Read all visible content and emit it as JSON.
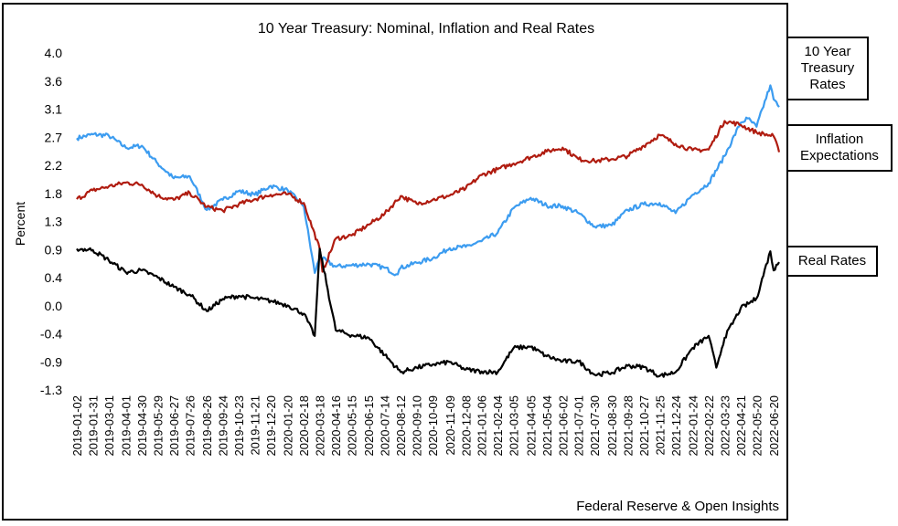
{
  "chart_data": {
    "type": "line",
    "title": "10 Year Treasury: Nominal, Inflation and Real Rates",
    "xlabel": "",
    "ylabel": "Percent",
    "ylim": [
      -1.3,
      4.0
    ],
    "yticks": [
      "4.0",
      "3.6",
      "3.1",
      "2.7",
      "2.2",
      "1.8",
      "1.3",
      "0.9",
      "0.4",
      "0.0",
      "-0.4",
      "-0.9",
      "-1.3"
    ],
    "x_tick_labels": [
      "2019-01-02",
      "2019-01-31",
      "2019-03-01",
      "2019-04-01",
      "2019-04-30",
      "2019-05-29",
      "2019-06-27",
      "2019-07-26",
      "2019-08-26",
      "2019-09-24",
      "2019-10-23",
      "2019-11-21",
      "2019-12-20",
      "2020-01-20",
      "2020-02-18",
      "2020-03-18",
      "2020-04-16",
      "2020-05-15",
      "2020-06-15",
      "2020-07-14",
      "2020-08-12",
      "2020-09-10",
      "2020-10-09",
      "2020-11-09",
      "2020-12-08",
      "2021-01-06",
      "2021-02-04",
      "2021-03-05",
      "2021-04-05",
      "2021-05-04",
      "2021-06-02",
      "2021-07-01",
      "2021-07-30",
      "2021-08-30",
      "2021-09-28",
      "2021-10-27",
      "2021-11-25",
      "2021-12-24",
      "2022-01-24",
      "2022-02-22",
      "2022-03-23",
      "2022-04-21",
      "2022-05-20",
      "2022-06-20"
    ],
    "grid": false,
    "legend_position": "right",
    "series": [
      {
        "name": "10 Year Treasury Rates",
        "color": "#3c9cf0",
        "x": [
          "2019-01-02",
          "2019-01-31",
          "2019-03-01",
          "2019-04-01",
          "2019-04-30",
          "2019-05-29",
          "2019-06-27",
          "2019-07-26",
          "2019-08-26",
          "2019-09-24",
          "2019-10-23",
          "2019-11-21",
          "2019-12-20",
          "2020-01-20",
          "2020-02-18",
          "2020-03-09",
          "2020-03-18",
          "2020-04-16",
          "2020-05-15",
          "2020-06-15",
          "2020-07-14",
          "2020-08-04",
          "2020-08-12",
          "2020-09-10",
          "2020-10-09",
          "2020-11-09",
          "2020-12-08",
          "2021-01-06",
          "2021-02-04",
          "2021-03-05",
          "2021-04-05",
          "2021-05-04",
          "2021-06-02",
          "2021-07-01",
          "2021-07-30",
          "2021-08-30",
          "2021-09-28",
          "2021-10-27",
          "2021-11-25",
          "2021-12-24",
          "2022-01-24",
          "2022-02-22",
          "2022-03-23",
          "2022-04-21",
          "2022-05-04",
          "2022-05-20",
          "2022-06-14",
          "2022-06-20",
          "2022-06-30"
        ],
        "values": [
          2.66,
          2.72,
          2.7,
          2.51,
          2.54,
          2.26,
          2.03,
          2.06,
          1.53,
          1.69,
          1.83,
          1.77,
          1.91,
          1.84,
          1.59,
          0.54,
          0.79,
          0.64,
          0.66,
          0.68,
          0.62,
          0.52,
          0.62,
          0.7,
          0.77,
          0.93,
          0.95,
          1.04,
          1.17,
          1.56,
          1.72,
          1.6,
          1.59,
          1.48,
          1.27,
          1.29,
          1.53,
          1.62,
          1.64,
          1.48,
          1.77,
          1.95,
          2.38,
          2.9,
          2.97,
          2.84,
          3.49,
          3.27,
          3.15
        ]
      },
      {
        "name": "Inflation Expectations",
        "color": "#b01c10",
        "x": [
          "2019-01-02",
          "2019-01-31",
          "2019-03-01",
          "2019-04-01",
          "2019-04-30",
          "2019-05-29",
          "2019-06-27",
          "2019-07-26",
          "2019-08-26",
          "2019-09-24",
          "2019-10-23",
          "2019-11-21",
          "2019-12-20",
          "2020-01-20",
          "2020-02-18",
          "2020-03-18",
          "2020-03-23",
          "2020-04-16",
          "2020-05-15",
          "2020-06-15",
          "2020-07-14",
          "2020-08-12",
          "2020-09-10",
          "2020-10-09",
          "2020-11-09",
          "2020-12-08",
          "2021-01-06",
          "2021-02-04",
          "2021-03-05",
          "2021-04-05",
          "2021-05-04",
          "2021-06-02",
          "2021-07-01",
          "2021-07-30",
          "2021-08-30",
          "2021-09-28",
          "2021-10-27",
          "2021-11-25",
          "2021-12-24",
          "2022-01-24",
          "2022-02-22",
          "2022-03-23",
          "2022-04-21",
          "2022-05-20",
          "2022-06-20",
          "2022-06-30"
        ],
        "values": [
          1.7,
          1.84,
          1.9,
          1.96,
          1.93,
          1.75,
          1.69,
          1.8,
          1.58,
          1.52,
          1.62,
          1.7,
          1.77,
          1.78,
          1.64,
          0.92,
          0.56,
          1.08,
          1.13,
          1.3,
          1.47,
          1.75,
          1.63,
          1.69,
          1.76,
          1.87,
          2.08,
          2.17,
          2.26,
          2.36,
          2.45,
          2.51,
          2.33,
          2.3,
          2.33,
          2.38,
          2.54,
          2.71,
          2.57,
          2.47,
          2.48,
          2.93,
          2.87,
          2.75,
          2.69,
          2.44
        ]
      },
      {
        "name": "Real Rates",
        "color": "#000000",
        "x": [
          "2019-01-02",
          "2019-01-31",
          "2019-03-01",
          "2019-04-01",
          "2019-04-30",
          "2019-05-29",
          "2019-06-27",
          "2019-07-26",
          "2019-08-26",
          "2019-09-24",
          "2019-10-23",
          "2019-11-21",
          "2019-12-20",
          "2020-01-20",
          "2020-02-18",
          "2020-03-09",
          "2020-03-18",
          "2020-04-16",
          "2020-05-15",
          "2020-06-15",
          "2020-07-14",
          "2020-08-12",
          "2020-09-10",
          "2020-10-09",
          "2020-11-09",
          "2020-12-08",
          "2021-01-06",
          "2021-02-04",
          "2021-03-05",
          "2021-04-05",
          "2021-05-04",
          "2021-06-02",
          "2021-07-01",
          "2021-07-30",
          "2021-08-30",
          "2021-09-28",
          "2021-10-27",
          "2021-11-25",
          "2021-12-24",
          "2022-01-24",
          "2022-02-22",
          "2022-03-08",
          "2022-03-23",
          "2022-04-21",
          "2022-05-20",
          "2022-06-14",
          "2022-06-20",
          "2022-06-30"
        ],
        "values": [
          0.92,
          0.9,
          0.74,
          0.55,
          0.58,
          0.47,
          0.32,
          0.2,
          -0.06,
          0.13,
          0.18,
          0.14,
          0.1,
          0.03,
          -0.1,
          -0.45,
          0.92,
          -0.36,
          -0.44,
          -0.48,
          -0.75,
          -1.02,
          -0.95,
          -0.9,
          -0.86,
          -0.98,
          -1.01,
          -1.02,
          -0.64,
          -0.62,
          -0.77,
          -0.85,
          -0.85,
          -1.06,
          -1.03,
          -0.92,
          -0.94,
          -1.08,
          -1.02,
          -0.64,
          -0.45,
          -0.95,
          -0.48,
          -0.02,
          0.14,
          0.88,
          0.58,
          0.71
        ]
      }
    ]
  },
  "legend_labels": {
    "nominal": "10 Year\nTreasury\nRates",
    "inflation": "Inflation\nExpectations",
    "real": "Real Rates"
  },
  "source_note": "Federal Reserve & Open Insights"
}
